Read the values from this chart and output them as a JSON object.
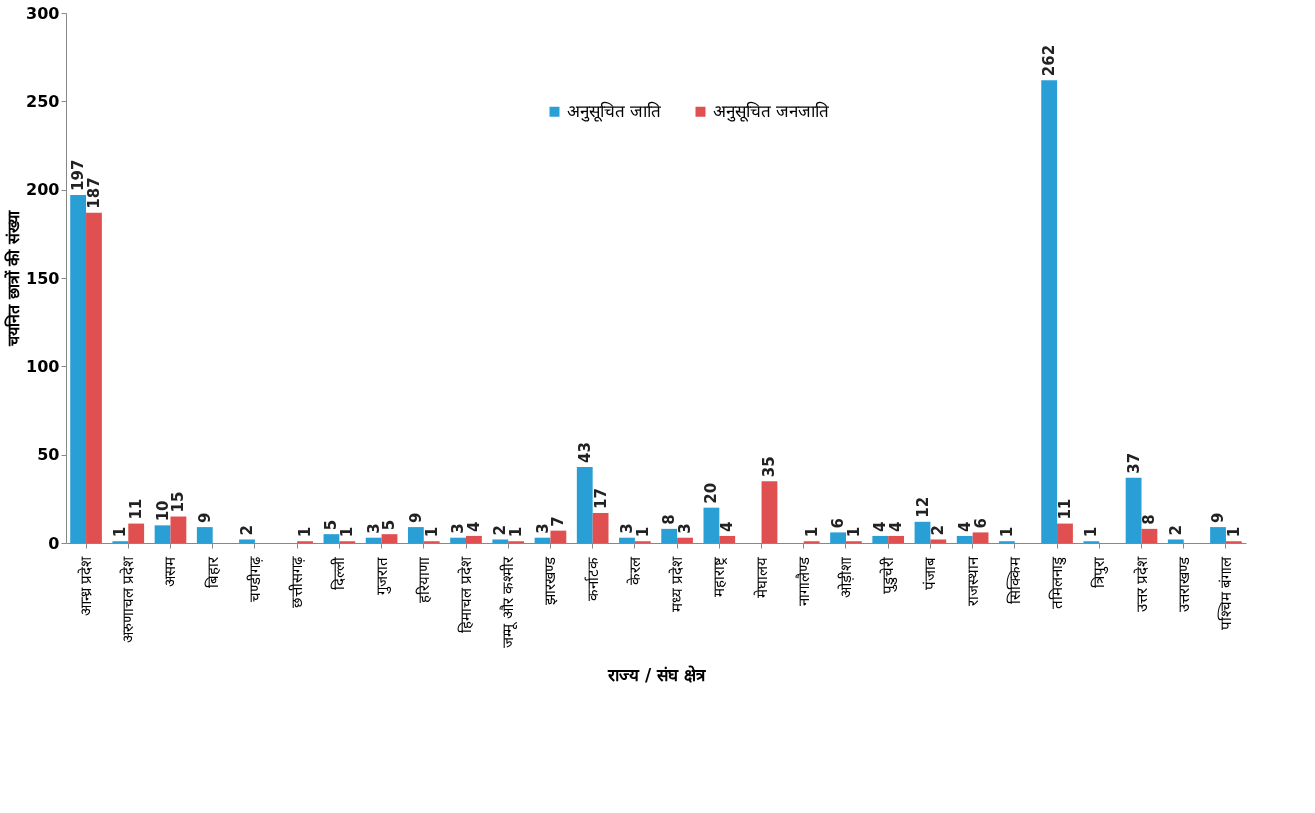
{
  "chart_data": {
    "type": "bar",
    "xlabel": "राज्य / संघ क्षेत्र",
    "ylabel": "चयनित छात्रों की संख्या",
    "categories": [
      "आन्ध्र प्रदेश",
      "अरुणाचल प्रदेश",
      "असम",
      "बिहार",
      "चण्डीगढ़",
      "छत्तीसगढ़",
      "दिल्ली",
      "गुजरात",
      "हरियाणा",
      "हिमाचल प्रदेश",
      "जम्मू और कश्मीर",
      "झारखण्ड",
      "कर्नाटक",
      "केरल",
      "मध्य प्रदेश",
      "महाराष्ट्र",
      "मेघालय",
      "नागालैण्ड",
      "ओड़ीशा",
      "पुडुचेरी",
      "पंजाब",
      "राजस्थान",
      "सिक्किम",
      "तमिलनाडु",
      "त्रिपुरा",
      "उत्तर प्रदेश",
      "उत्तराखण्ड",
      "पश्चिम बंगाल"
    ],
    "series": [
      {
        "name": "अनुसूचित जाति",
        "color": "#2a9fd6",
        "values": [
          197,
          1,
          10,
          9,
          2,
          null,
          5,
          3,
          9,
          3,
          2,
          3,
          43,
          3,
          8,
          20,
          null,
          null,
          6,
          4,
          12,
          4,
          1,
          262,
          1,
          37,
          2,
          9
        ]
      },
      {
        "name": "अनुसूचित जनजाति",
        "color": "#e05050",
        "values": [
          187,
          11,
          15,
          null,
          null,
          1,
          1,
          5,
          1,
          4,
          1,
          7,
          17,
          1,
          3,
          4,
          35,
          1,
          1,
          4,
          2,
          6,
          null,
          11,
          null,
          8,
          null,
          1
        ]
      }
    ],
    "ylim": [
      0,
      300
    ],
    "yticks": [
      0,
      50,
      100,
      150,
      200,
      250,
      300
    ],
    "grid": false,
    "legend": "top",
    "data_labels": true
  }
}
